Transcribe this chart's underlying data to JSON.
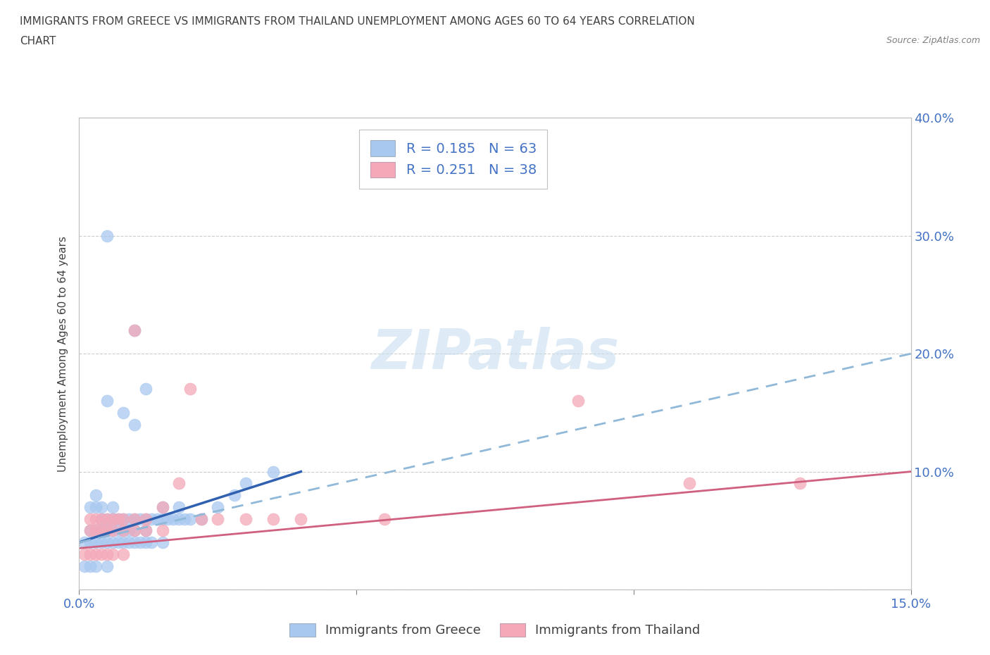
{
  "title_line1": "IMMIGRANTS FROM GREECE VS IMMIGRANTS FROM THAILAND UNEMPLOYMENT AMONG AGES 60 TO 64 YEARS CORRELATION",
  "title_line2": "CHART",
  "source": "Source: ZipAtlas.com",
  "ylabel": "Unemployment Among Ages 60 to 64 years",
  "xlim": [
    0.0,
    0.15
  ],
  "ylim": [
    0.0,
    0.4
  ],
  "greece_color": "#a8c8f0",
  "thailand_color": "#f4a8b8",
  "greece_line_color": "#3060b0",
  "thailand_line_color": "#d06080",
  "thailand_dashed_color": "#90b8d8",
  "legend_greece_label": "Immigrants from Greece",
  "legend_thailand_label": "Immigrants from Thailand",
  "greece_R": 0.185,
  "greece_N": 63,
  "thailand_R": 0.251,
  "thailand_N": 38,
  "greece_trend_x": [
    0.0,
    0.04
  ],
  "greece_trend_y": [
    0.04,
    0.1
  ],
  "thailand_trend_x": [
    0.0,
    0.15
  ],
  "thailand_trend_y": [
    0.04,
    0.2
  ],
  "greece_scatter_x": [
    0.005,
    0.01,
    0.012,
    0.005,
    0.008,
    0.01,
    0.003,
    0.004,
    0.006,
    0.002,
    0.003,
    0.004,
    0.005,
    0.006,
    0.007,
    0.008,
    0.009,
    0.01,
    0.011,
    0.012,
    0.013,
    0.014,
    0.015,
    0.016,
    0.017,
    0.018,
    0.019,
    0.02,
    0.022,
    0.025,
    0.028,
    0.03,
    0.035,
    0.002,
    0.003,
    0.004,
    0.005,
    0.006,
    0.007,
    0.008,
    0.009,
    0.01,
    0.012,
    0.015,
    0.018,
    0.001,
    0.002,
    0.003,
    0.004,
    0.005,
    0.006,
    0.007,
    0.008,
    0.009,
    0.01,
    0.011,
    0.012,
    0.013,
    0.015,
    0.001,
    0.002,
    0.003,
    0.005
  ],
  "greece_scatter_y": [
    0.3,
    0.22,
    0.17,
    0.16,
    0.15,
    0.14,
    0.08,
    0.07,
    0.07,
    0.07,
    0.07,
    0.06,
    0.06,
    0.06,
    0.06,
    0.06,
    0.06,
    0.06,
    0.06,
    0.06,
    0.06,
    0.06,
    0.06,
    0.06,
    0.06,
    0.06,
    0.06,
    0.06,
    0.06,
    0.07,
    0.08,
    0.09,
    0.1,
    0.05,
    0.05,
    0.05,
    0.05,
    0.05,
    0.05,
    0.05,
    0.05,
    0.05,
    0.05,
    0.07,
    0.07,
    0.04,
    0.04,
    0.04,
    0.04,
    0.04,
    0.04,
    0.04,
    0.04,
    0.04,
    0.04,
    0.04,
    0.04,
    0.04,
    0.04,
    0.02,
    0.02,
    0.02,
    0.02
  ],
  "thailand_scatter_x": [
    0.01,
    0.02,
    0.055,
    0.09,
    0.11,
    0.13,
    0.002,
    0.003,
    0.004,
    0.005,
    0.006,
    0.007,
    0.008,
    0.01,
    0.012,
    0.015,
    0.018,
    0.022,
    0.025,
    0.03,
    0.035,
    0.04,
    0.002,
    0.003,
    0.004,
    0.005,
    0.006,
    0.008,
    0.01,
    0.012,
    0.015,
    0.001,
    0.002,
    0.003,
    0.004,
    0.005,
    0.006,
    0.008
  ],
  "thailand_scatter_y": [
    0.22,
    0.17,
    0.06,
    0.16,
    0.09,
    0.09,
    0.06,
    0.06,
    0.06,
    0.06,
    0.06,
    0.06,
    0.06,
    0.06,
    0.06,
    0.07,
    0.09,
    0.06,
    0.06,
    0.06,
    0.06,
    0.06,
    0.05,
    0.05,
    0.05,
    0.05,
    0.05,
    0.05,
    0.05,
    0.05,
    0.05,
    0.03,
    0.03,
    0.03,
    0.03,
    0.03,
    0.03,
    0.03
  ]
}
